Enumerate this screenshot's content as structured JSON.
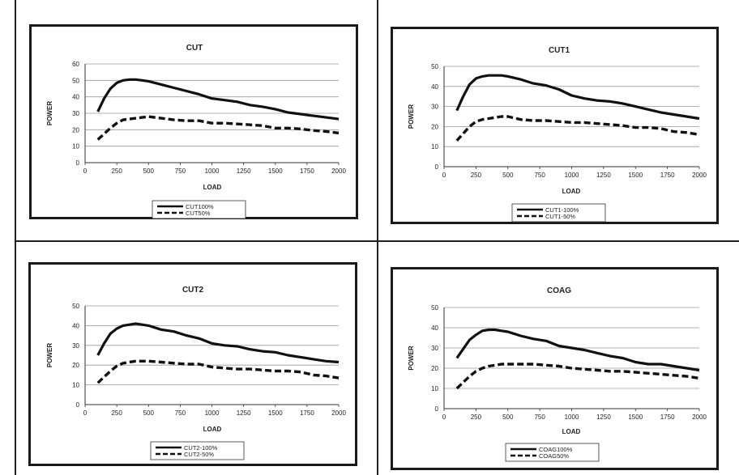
{
  "chart_data": [
    {
      "type": "line",
      "title": "CUT",
      "xlabel": "LOAD",
      "ylabel": "POWER",
      "xlim": [
        0,
        2000
      ],
      "ylim": [
        0,
        60
      ],
      "xticks": [
        "0",
        "250",
        "500",
        "750",
        "1000",
        "1250",
        "1500",
        "1750",
        "2000"
      ],
      "yticks": [
        "0",
        "10",
        "20",
        "30",
        "40",
        "50",
        "60"
      ],
      "grid": "horizontal",
      "legend": "bottom-center",
      "x": [
        100,
        150,
        200,
        250,
        300,
        350,
        400,
        450,
        500,
        600,
        700,
        800,
        900,
        1000,
        1100,
        1200,
        1300,
        1400,
        1500,
        1600,
        1700,
        1800,
        1900,
        2000
      ],
      "series": [
        {
          "name": "CUT100%",
          "style": "solid",
          "values": [
            31,
            39,
            45,
            48.5,
            50,
            50.5,
            50.5,
            50,
            49.5,
            47.5,
            45.5,
            43.5,
            41.5,
            39,
            38,
            37,
            35,
            34,
            32.5,
            30.5,
            29.5,
            28.5,
            27.5,
            26.5
          ]
        },
        {
          "name": "CUT50%",
          "style": "dashed",
          "values": [
            14,
            17.5,
            21,
            24,
            26,
            26.5,
            27,
            27.5,
            28,
            27,
            26,
            25.5,
            25.5,
            24,
            24,
            23.5,
            23,
            22.5,
            21,
            21,
            20.5,
            19.5,
            19,
            18
          ]
        }
      ]
    },
    {
      "type": "line",
      "title": "CUT1",
      "xlabel": "LOAD",
      "ylabel": "POWER",
      "xlim": [
        0,
        2000
      ],
      "ylim": [
        0,
        50
      ],
      "xticks": [
        "0",
        "250",
        "500",
        "750",
        "1000",
        "1250",
        "1500",
        "1750",
        "2000"
      ],
      "yticks": [
        "0",
        "10",
        "20",
        "30",
        "40",
        "50"
      ],
      "grid": "horizontal",
      "legend": "bottom-center",
      "x": [
        100,
        150,
        200,
        250,
        300,
        350,
        400,
        450,
        500,
        600,
        700,
        800,
        900,
        1000,
        1100,
        1200,
        1300,
        1400,
        1500,
        1600,
        1700,
        1800,
        1900,
        2000
      ],
      "series": [
        {
          "name": "CUT1-100%",
          "style": "solid",
          "values": [
            28,
            35,
            41,
            44,
            45,
            45.5,
            45.5,
            45.5,
            45,
            43.5,
            41.5,
            40.5,
            38.5,
            35.5,
            34,
            33,
            32.5,
            31.5,
            30,
            28.5,
            27,
            26,
            25,
            24
          ]
        },
        {
          "name": "CUT1-50%",
          "style": "dashed",
          "values": [
            13,
            16.5,
            20,
            22.5,
            23.5,
            24,
            24.5,
            25,
            25,
            23.5,
            23,
            23,
            22.5,
            22,
            22,
            21.5,
            21,
            20.5,
            19.5,
            19.5,
            19,
            17.5,
            17,
            16
          ]
        }
      ]
    },
    {
      "type": "line",
      "title": "CUT2",
      "xlabel": "LOAD",
      "ylabel": "POWER",
      "xlim": [
        0,
        2000
      ],
      "ylim": [
        0,
        50
      ],
      "xticks": [
        "0",
        "250",
        "500",
        "750",
        "1000",
        "1250",
        "1500",
        "1750",
        "2000"
      ],
      "yticks": [
        "0",
        "10",
        "20",
        "30",
        "40",
        "50"
      ],
      "grid": "horizontal",
      "legend": "bottom-center",
      "x": [
        100,
        150,
        200,
        250,
        300,
        350,
        400,
        450,
        500,
        600,
        700,
        800,
        900,
        1000,
        1100,
        1200,
        1300,
        1400,
        1500,
        1600,
        1700,
        1800,
        1900,
        2000
      ],
      "series": [
        {
          "name": "CUT2-100%",
          "style": "solid",
          "values": [
            25,
            31,
            36,
            38.5,
            40,
            40.5,
            41,
            40.5,
            40,
            38,
            37,
            35,
            33.5,
            31,
            30,
            29.5,
            28,
            27,
            26.5,
            25,
            24,
            23,
            22,
            21.5
          ]
        },
        {
          "name": "CUT2-50%",
          "style": "dashed",
          "values": [
            11,
            14,
            17,
            19.5,
            21,
            21.5,
            22,
            22,
            22,
            21.5,
            21,
            20.5,
            20.5,
            19,
            18.5,
            18,
            18,
            17.5,
            17,
            17,
            16.5,
            15,
            14.5,
            13.5
          ]
        }
      ]
    },
    {
      "type": "line",
      "title": "COAG",
      "xlabel": "LOAD",
      "ylabel": "POWER",
      "xlim": [
        0,
        2000
      ],
      "ylim": [
        0,
        50
      ],
      "xticks": [
        "0",
        "250",
        "500",
        "750",
        "1000",
        "1250",
        "1500",
        "1750",
        "2000"
      ],
      "yticks": [
        "0",
        "10",
        "20",
        "30",
        "40",
        "50"
      ],
      "grid": "horizontal",
      "legend": "bottom-center",
      "x": [
        100,
        150,
        200,
        250,
        300,
        350,
        400,
        450,
        500,
        600,
        700,
        800,
        900,
        1000,
        1100,
        1200,
        1300,
        1400,
        1500,
        1600,
        1700,
        1800,
        1900,
        2000
      ],
      "series": [
        {
          "name": "COAG100%",
          "style": "solid",
          "values": [
            25,
            29.5,
            34,
            36.5,
            38.5,
            39,
            39,
            38.5,
            38,
            36,
            34.5,
            33.5,
            31,
            30,
            29,
            27.5,
            26,
            25,
            23,
            22,
            22,
            21,
            20,
            19
          ]
        },
        {
          "name": "COAG50%",
          "style": "dashed",
          "values": [
            10,
            13,
            16,
            18.5,
            20,
            21,
            21.5,
            22,
            22,
            22,
            22,
            21.5,
            21,
            20,
            19.5,
            19,
            18.5,
            18.5,
            18,
            17.5,
            17,
            16.5,
            16,
            15
          ]
        }
      ]
    }
  ]
}
